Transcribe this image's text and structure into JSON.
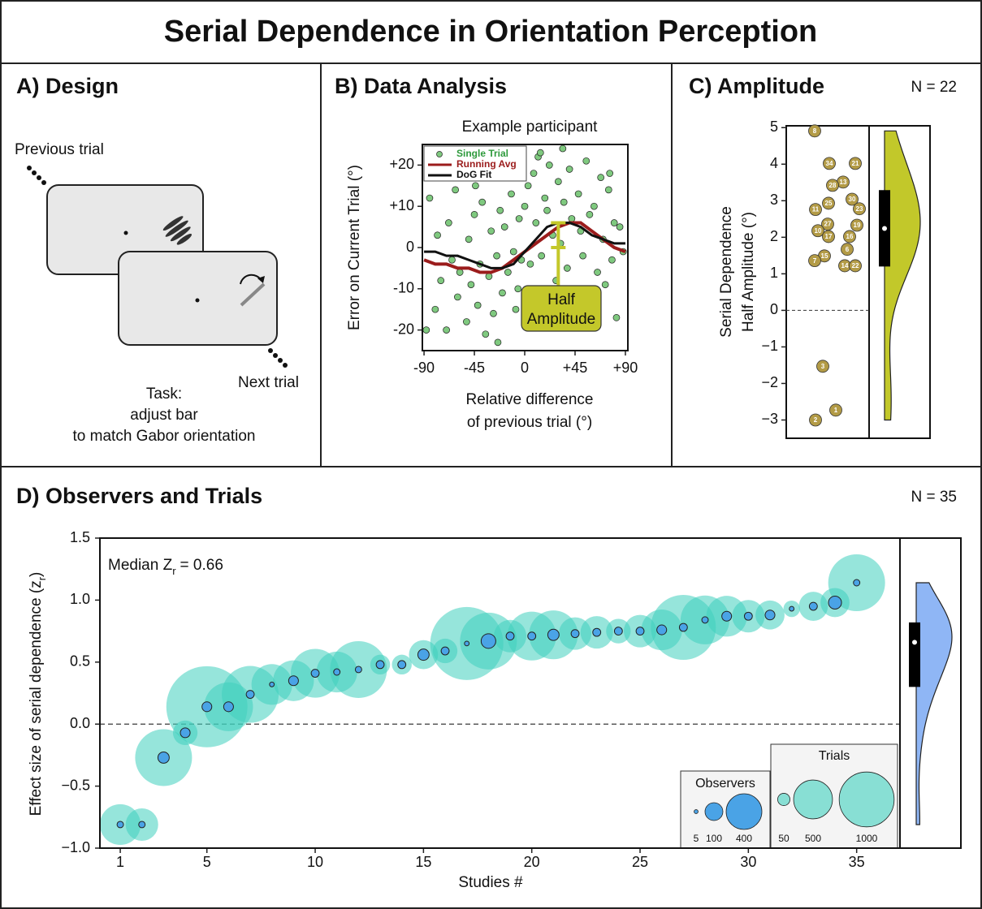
{
  "title": "Serial Dependence in Orientation Perception",
  "design": {
    "title": "A) Design",
    "previous": "Previous trial",
    "next": "Next trial",
    "task": [
      "Task:",
      "adjust bar",
      "to match Gabor orientation"
    ]
  },
  "chart_data": [
    {
      "type": "scatter",
      "title": "B) Data Analysis",
      "subtitle": "Example participant",
      "xlabel": [
        "Relative difference",
        "of previous trial (°)"
      ],
      "ylabel": "Error on Current Trial (°)",
      "xlim": [
        -91.5,
        92.2
      ],
      "ylim": [
        -25,
        25
      ],
      "xticks": [
        -90,
        -45,
        0,
        {
          "value": 45,
          "label": "+45"
        },
        {
          "value": 90,
          "label": "+90"
        }
      ],
      "yticks": [
        {
          "value": 20,
          "label": "+20"
        },
        {
          "value": 10,
          "label": "+10"
        },
        0,
        -10,
        -20
      ],
      "annotation": [
        "Half",
        "Amplitude"
      ],
      "annotation_color": "#c4c82a",
      "series": [
        {
          "name": "Single Trial",
          "color": "#2e9a3c",
          "fill": "#7fc97f",
          "style": "markers",
          "x": [
            -85,
            -80,
            -78,
            -75,
            -72,
            -70,
            -68,
            -65,
            -62,
            -60,
            -58,
            -55,
            -52,
            -50,
            -48,
            -45,
            -42,
            -40,
            -38,
            -35,
            -32,
            -30,
            -28,
            -25,
            -22,
            -20,
            -18,
            -15,
            -12,
            -10,
            -8,
            -5,
            -3,
            0,
            3,
            5,
            8,
            10,
            12,
            15,
            18,
            20,
            22,
            25,
            28,
            30,
            32,
            35,
            38,
            40,
            42,
            45,
            48,
            50,
            52,
            55,
            58,
            60,
            62,
            65,
            68,
            70,
            72,
            75,
            78,
            80,
            82,
            85,
            88,
            -88,
            -66,
            -44,
            -24,
            -6,
            14,
            34,
            56,
            76
          ],
          "values": [
            12,
            -15,
            3,
            -8,
            18,
            -20,
            6,
            -3,
            14,
            -12,
            -6,
            20,
            -18,
            2,
            -9,
            8,
            -14,
            -4,
            11,
            -21,
            -7,
            4,
            -16,
            -2,
            9,
            -11,
            5,
            -6,
            13,
            -1,
            -15,
            7,
            -3,
            10,
            15,
            -4,
            18,
            6,
            22,
            -2,
            12,
            9,
            20,
            3,
            -8,
            16,
            1,
            11,
            -5,
            19,
            7,
            -10,
            13,
            4,
            -2,
            21,
            8,
            -13,
            10,
            -6,
            17,
            2,
            -9,
            14,
            -3,
            6,
            -17,
            5,
            -1,
            -20,
            22,
            15,
            -23,
            -10,
            23,
            24,
            -12,
            18
          ]
        },
        {
          "name": "Running Avg",
          "color": "#9b1c1c",
          "style": "line",
          "x": [
            -90,
            -80,
            -70,
            -60,
            -50,
            -40,
            -30,
            -20,
            -10,
            0,
            10,
            20,
            30,
            40,
            50,
            60,
            70,
            80,
            90
          ],
          "values": [
            -3,
            -4,
            -4,
            -5,
            -5,
            -6,
            -6,
            -5,
            -3,
            -1,
            1,
            3,
            5,
            6,
            6,
            4,
            2,
            0,
            -1
          ]
        },
        {
          "name": "DoG Fit",
          "color": "#111111",
          "style": "line",
          "x": [
            -90,
            -80,
            -70,
            -60,
            -50,
            -40,
            -30,
            -20,
            -10,
            0,
            10,
            20,
            30,
            40,
            50,
            60,
            70,
            80,
            90
          ],
          "values": [
            -1,
            -1,
            -2,
            -2,
            -3,
            -4,
            -5,
            -5,
            -4,
            -1,
            2,
            5,
            6,
            6,
            5,
            3,
            2,
            1,
            1
          ]
        }
      ]
    },
    {
      "type": "strip",
      "title": "C) Amplitude",
      "n_label": "N = 22",
      "ylabel": [
        "Serial Dependence",
        "Half Amplitude (°)"
      ],
      "ylim": [
        -3.5,
        5.05
      ],
      "yticks": [
        5,
        4,
        3,
        2,
        1,
        0,
        {
          "value": -1,
          "label": "−1"
        },
        {
          "value": -2,
          "label": "−2"
        },
        {
          "value": -3,
          "label": "−3"
        }
      ],
      "labels": [
        "8",
        "34",
        "21",
        "13",
        "28",
        "25",
        "11",
        "30",
        "23",
        "27",
        "19",
        "10",
        "17",
        "16",
        "6",
        "15",
        "7",
        "14",
        "22",
        "3",
        "1",
        "2"
      ],
      "values": [
        4.91,
        4.02,
        4.02,
        3.51,
        3.42,
        2.93,
        2.76,
        3.04,
        2.78,
        2.36,
        2.33,
        2.18,
        2.02,
        2.02,
        1.67,
        1.49,
        1.36,
        1.22,
        1.22,
        -1.53,
        -2.73,
        -3.0
      ],
      "color": "#b39b46",
      "violin_color": "#c2c82a",
      "box": {
        "q1": 1.2,
        "median": 2.24,
        "q3": 3.29
      }
    },
    {
      "type": "bubble",
      "title": "D) Observers and Trials",
      "n_label": "N = 35",
      "annotation": [
        "Median Z",
        "r",
        "= 0.66"
      ],
      "xlabel": "Studies #",
      "ylabel": [
        "Effect size of serial dependence (z",
        "r",
        ")"
      ],
      "xlim": [
        0.06,
        37
      ],
      "ylim": [
        -1.0,
        1.5
      ],
      "xticks": [
        1,
        5,
        10,
        15,
        20,
        25,
        30,
        35
      ],
      "yticks": [
        1.5,
        {
          "value": 1.0,
          "label": "1.0"
        },
        0.5,
        {
          "value": 0.0,
          "label": "0.0"
        },
        {
          "value": -0.5,
          "label": "−0.5"
        },
        {
          "value": -1.0,
          "label": "−1.0"
        }
      ],
      "x": [
        1,
        2,
        3,
        4,
        5,
        6,
        7,
        8,
        9,
        10,
        11,
        12,
        13,
        14,
        15,
        16,
        17,
        18,
        19,
        20,
        21,
        22,
        23,
        24,
        25,
        26,
        27,
        28,
        29,
        30,
        31,
        32,
        33,
        34,
        35
      ],
      "values": [
        -0.81,
        -0.81,
        -0.27,
        -0.07,
        0.14,
        0.14,
        0.24,
        0.32,
        0.35,
        0.41,
        0.42,
        0.44,
        0.48,
        0.48,
        0.56,
        0.59,
        0.65,
        0.67,
        0.71,
        0.71,
        0.72,
        0.73,
        0.74,
        0.75,
        0.75,
        0.76,
        0.78,
        0.84,
        0.87,
        0.87,
        0.88,
        0.93,
        0.95,
        0.98,
        1.14
      ],
      "series": [
        {
          "name": "Observers",
          "color": "#4aa3e6",
          "legend_sizes": [
            5,
            100,
            400
          ],
          "values": [
            13,
            13,
            40,
            30,
            30,
            30,
            20,
            7,
            30,
            20,
            13,
            13,
            20,
            20,
            40,
            20,
            7,
            67,
            20,
            20,
            40,
            20,
            20,
            20,
            20,
            30,
            20,
            13,
            30,
            20,
            30,
            7,
            20,
            53,
            13
          ]
        },
        {
          "name": "Trials",
          "color": "#40d0be",
          "legend_sizes": [
            50,
            500,
            1000
          ],
          "values": [
            550,
            350,
            1070,
            200,
            2180,
            790,
            1070,
            550,
            550,
            790,
            550,
            1070,
            130,
            130,
            280,
            200,
            1770,
            1070,
            350,
            790,
            790,
            350,
            350,
            200,
            350,
            550,
            1400,
            790,
            550,
            350,
            280,
            90,
            280,
            280,
            1070
          ]
        }
      ],
      "violin_color": "#8fb6f5",
      "box": {
        "q1": 0.3,
        "median": 0.66,
        "q3": 0.82
      }
    }
  ]
}
